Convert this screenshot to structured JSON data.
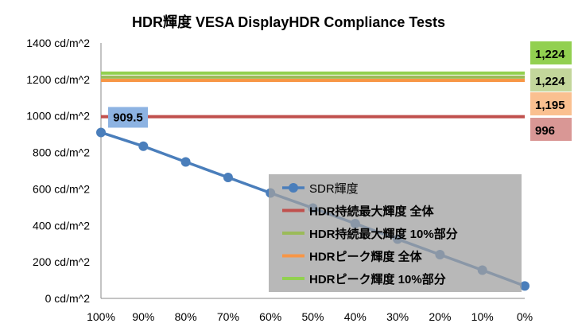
{
  "chart_data": {
    "type": "line",
    "title": "HDR輝度 VESA DisplayHDR Compliance Tests",
    "xlabel": "",
    "ylabel": "",
    "ylim": [
      0,
      1400
    ],
    "ytick_labels": [
      "0 cd/m^2",
      "200 cd/m^2",
      "400 cd/m^2",
      "600 cd/m^2",
      "800 cd/m^2",
      "1000 cd/m^2",
      "1200 cd/m^2",
      "1400 cd/m^2"
    ],
    "categories": [
      "100%",
      "90%",
      "80%",
      "70%",
      "60%",
      "50%",
      "40%",
      "30%",
      "20%",
      "10%",
      "0%"
    ],
    "series": [
      {
        "name": "SDR輝度",
        "color": "#4a7ebb",
        "values": [
          909.5,
          834,
          748,
          663,
          578,
          495,
          410,
          325,
          240,
          155,
          68
        ],
        "marker": "circle",
        "annotation": {
          "index": 0,
          "label": "909.5",
          "box_color": "#8db3e2"
        }
      },
      {
        "name": "HDR持続最大輝度 全体",
        "color": "#c0504d",
        "constant": 996,
        "end_label": "996",
        "box_color": "#d99795"
      },
      {
        "name": "HDR持続最大輝度 10%部分",
        "color": "#9bbb59",
        "constant": 1224,
        "end_label": "1,224",
        "box_color": "#c3d69b"
      },
      {
        "name": "HDRピーク輝度 全体",
        "color": "#f79646",
        "constant": 1195,
        "end_label": "1,195",
        "box_color": "#fac090"
      },
      {
        "name": "HDRピーク輝度 10%部分",
        "color": "#92d050",
        "constant": 1224,
        "end_label": "1,224",
        "box_color": "#92d050"
      }
    ],
    "legend_position": "bottom-right",
    "grid": false
  }
}
